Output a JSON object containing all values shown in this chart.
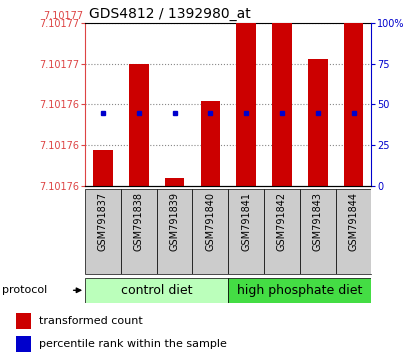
{
  "title": "GDS4812 / 1392980_at",
  "samples": [
    "GSM791837",
    "GSM791838",
    "GSM791839",
    "GSM791840",
    "GSM791841",
    "GSM791842",
    "GSM791843",
    "GSM791844"
  ],
  "ylim_left": [
    7.101758,
    7.101778
  ],
  "ylim_right": [
    0,
    100
  ],
  "bar_bottoms_pct": [
    0,
    0,
    0,
    0,
    0,
    0,
    0,
    0
  ],
  "bar_tops_pct": [
    22,
    75,
    5,
    52,
    100,
    100,
    78,
    100
  ],
  "percentile_ranks_pct": [
    45,
    45,
    45,
    45,
    45,
    45,
    45,
    45
  ],
  "ytick_positions_pct": [
    0,
    25,
    50,
    75,
    100
  ],
  "ytick_labels_left": [
    "7.10176",
    "7.10176",
    "7.10176",
    "7.10177",
    "7.10177"
  ],
  "ytick_labels_right": [
    "0",
    "25",
    "50",
    "75",
    "100%"
  ],
  "bar_color": "#cc0000",
  "dot_color": "#0000cc",
  "bg_color": "#ffffff",
  "grid_color": "#888888",
  "sample_box_color": "#cccccc",
  "groups": [
    {
      "label": "control diet",
      "start": 0,
      "end": 4,
      "color": "#bbffbb"
    },
    {
      "label": "high phosphate diet",
      "start": 4,
      "end": 8,
      "color": "#44dd44"
    }
  ],
  "protocol_label": "protocol",
  "legend_items": [
    {
      "label": "transformed count",
      "color": "#cc0000"
    },
    {
      "label": "percentile rank within the sample",
      "color": "#0000cc"
    }
  ],
  "left_axis_color": "#dd4444",
  "right_axis_color": "#0000cc",
  "title_fontsize": 10,
  "axis_fontsize": 7,
  "sample_fontsize": 7,
  "group_fontsize": 9,
  "legend_fontsize": 8
}
